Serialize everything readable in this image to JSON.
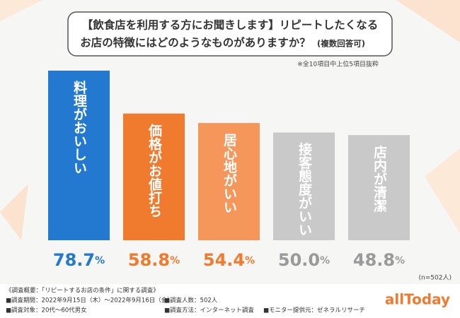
{
  "chart_data": {
    "type": "bar",
    "title": [
      "【飲食店を利用する方にお聞きします】リピートしたくなる",
      "お店の特徴にはどのようなものがありますか？",
      "(複数回答可)"
    ],
    "note": "※全10項目中上位5項目抜粋",
    "sample": "(n=502人)",
    "categories": [
      "料理がおいしい",
      "価格がお値打ち",
      "居心地がいい",
      "接客態度がいい",
      "店内が清潔"
    ],
    "values": [
      78.7,
      58.8,
      54.4,
      50.0,
      48.8
    ],
    "value_labels": [
      "78.7%",
      "58.8%",
      "54.4%",
      "50.0%",
      "48.8%"
    ],
    "colors": [
      "#2378d0",
      "#f07a2e",
      "#f5965a",
      "#c9c9c9",
      "#c9c9c9"
    ],
    "label_colors": [
      "#2378d0",
      "#f07a2e",
      "#f07a2e",
      "#9a9a9a",
      "#9a9a9a"
    ]
  },
  "footer": [
    "《調査概要：「リピートするお店の条件」に関する調査》",
    "■調査期間：2022年9月15日（木）～2022年9月16日（金）",
    "■調査人数：502人",
    "■調査対象：20代～60代男女",
    "■調査方法：インターネット調査",
    "■モニター提供元：ゼネラルリサーチ"
  ],
  "logo": "allToday"
}
